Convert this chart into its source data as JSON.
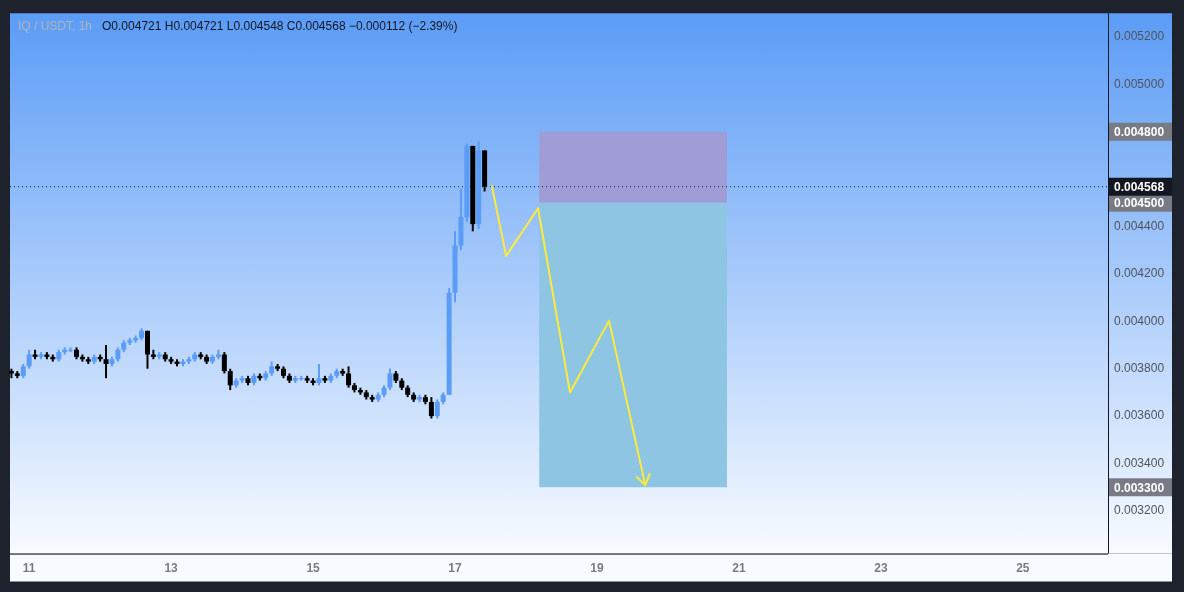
{
  "chart_data": {
    "type": "candlestick",
    "title": "IQ / USDT, 1h",
    "subtitle": "O0.004721 H0.004721 L0.004548 C0.004568 −0.000112 (−2.39%)",
    "xlim": [
      10.73,
      26.2
    ],
    "xticks": [
      11,
      13,
      15,
      17,
      19,
      21,
      23,
      25
    ],
    "ylim": [
      0.00302,
      0.0053
    ],
    "yticks": [
      {
        "value": 0.0032,
        "label": "0.003200"
      },
      {
        "value": 0.0034,
        "label": "0.003400"
      },
      {
        "value": 0.0036,
        "label": "0.003600"
      },
      {
        "value": 0.0038,
        "label": "0.003800"
      },
      {
        "value": 0.004,
        "label": "0.004000"
      },
      {
        "value": 0.0042,
        "label": "0.004200"
      },
      {
        "value": 0.0044,
        "label": "0.004400"
      },
      {
        "value": 0.005,
        "label": "0.005000"
      },
      {
        "value": 0.0052,
        "label": "0.005200"
      }
    ],
    "legend": false,
    "grid": false,
    "ref_lines": [
      {
        "axis": "y",
        "value": 0.004568,
        "label": "0.004568",
        "color": "#131722",
        "line_style": "dotted"
      }
    ],
    "bands": [
      {
        "axis": "y",
        "from": 0.0045,
        "to": 0.0048,
        "color": "#a09dd6"
      },
      {
        "axis": "y",
        "from": 0.0033,
        "to": 0.0045,
        "color": "#8ec5e2"
      }
    ],
    "annotations": [
      "0.004800",
      "0.004500",
      "0.003300"
    ],
    "series": [
      {
        "type": "candlestick",
        "x": [
          10.75,
          10.833,
          10.917,
          11,
          11.083,
          11.167,
          11.25,
          11.333,
          11.417,
          11.5,
          11.583,
          11.667,
          11.75,
          11.833,
          11.917,
          12,
          12.083,
          12.167,
          12.25,
          12.333,
          12.417,
          12.5,
          12.583,
          12.667,
          12.75,
          12.833,
          12.917,
          13,
          13.083,
          13.167,
          13.25,
          13.333,
          13.417,
          13.5,
          13.583,
          13.667,
          13.75,
          13.833,
          13.917,
          14,
          14.083,
          14.167,
          14.25,
          14.333,
          14.417,
          14.5,
          14.583,
          14.667,
          14.75,
          14.833,
          14.917,
          15,
          15.083,
          15.167,
          15.25,
          15.333,
          15.417,
          15.5,
          15.583,
          15.667,
          15.75,
          15.833,
          15.917,
          16,
          16.083,
          16.167,
          16.25,
          16.333,
          16.417,
          16.5,
          16.583,
          16.667,
          16.75,
          16.833,
          16.917,
          17,
          17.083,
          17.167,
          17.25,
          17.333,
          17.417
        ],
        "ohlc": [
          [
            0.00379,
            0.0038,
            0.00376,
            0.00378
          ],
          [
            0.00378,
            0.00379,
            0.00376,
            0.00377
          ],
          [
            0.00377,
            0.00382,
            0.00376,
            0.00381
          ],
          [
            0.00381,
            0.00388,
            0.0038,
            0.00386
          ],
          [
            0.00386,
            0.00388,
            0.00384,
            0.00385
          ],
          [
            0.00385,
            0.00387,
            0.00384,
            0.00386
          ],
          [
            0.00386,
            0.00387,
            0.00384,
            0.00385
          ],
          [
            0.00385,
            0.00386,
            0.00383,
            0.00384
          ],
          [
            0.00384,
            0.00388,
            0.00383,
            0.00387
          ],
          [
            0.00387,
            0.00389,
            0.00386,
            0.00388
          ],
          [
            0.00388,
            0.00389,
            0.00387,
            0.00388
          ],
          [
            0.00388,
            0.00389,
            0.00384,
            0.00385
          ],
          [
            0.00385,
            0.00386,
            0.00383,
            0.00384
          ],
          [
            0.00384,
            0.00385,
            0.00382,
            0.00383
          ],
          [
            0.00383,
            0.00386,
            0.00382,
            0.00385
          ],
          [
            0.00385,
            0.00386,
            0.00383,
            0.00384
          ],
          [
            0.00384,
            0.0039,
            0.00376,
            0.00382
          ],
          [
            0.00382,
            0.00385,
            0.00381,
            0.00384
          ],
          [
            0.00384,
            0.00389,
            0.00383,
            0.00388
          ],
          [
            0.00388,
            0.00392,
            0.00387,
            0.00391
          ],
          [
            0.00391,
            0.00393,
            0.0039,
            0.00392
          ],
          [
            0.00392,
            0.00394,
            0.00391,
            0.00393
          ],
          [
            0.00393,
            0.00397,
            0.00392,
            0.00396
          ],
          [
            0.00396,
            0.00396,
            0.0038,
            0.00386
          ],
          [
            0.00386,
            0.00388,
            0.00384,
            0.00385
          ],
          [
            0.00385,
            0.00387,
            0.00384,
            0.00386
          ],
          [
            0.00386,
            0.00387,
            0.00383,
            0.00384
          ],
          [
            0.00384,
            0.00385,
            0.00382,
            0.00383
          ],
          [
            0.00383,
            0.00384,
            0.00381,
            0.00382
          ],
          [
            0.00382,
            0.00384,
            0.00381,
            0.00383
          ],
          [
            0.00383,
            0.00385,
            0.00382,
            0.00384
          ],
          [
            0.00384,
            0.00387,
            0.00383,
            0.00386
          ],
          [
            0.00386,
            0.00387,
            0.00384,
            0.00385
          ],
          [
            0.00385,
            0.00386,
            0.00382,
            0.00383
          ],
          [
            0.00383,
            0.00386,
            0.00382,
            0.00385
          ],
          [
            0.00385,
            0.00388,
            0.00384,
            0.00386
          ],
          [
            0.00386,
            0.00387,
            0.00378,
            0.00379
          ],
          [
            0.00379,
            0.0038,
            0.00371,
            0.00373
          ],
          [
            0.00373,
            0.00376,
            0.00372,
            0.00375
          ],
          [
            0.00375,
            0.00377,
            0.00374,
            0.00376
          ],
          [
            0.00376,
            0.00377,
            0.00373,
            0.00374
          ],
          [
            0.00374,
            0.00378,
            0.00373,
            0.00377
          ],
          [
            0.00377,
            0.00378,
            0.00375,
            0.00376
          ],
          [
            0.00376,
            0.00379,
            0.00375,
            0.00378
          ],
          [
            0.00378,
            0.00383,
            0.00377,
            0.00381
          ],
          [
            0.00381,
            0.00382,
            0.00379,
            0.0038
          ],
          [
            0.0038,
            0.00381,
            0.00376,
            0.00377
          ],
          [
            0.00377,
            0.00378,
            0.00374,
            0.00375
          ],
          [
            0.00375,
            0.00377,
            0.00374,
            0.00376
          ],
          [
            0.00376,
            0.00377,
            0.00375,
            0.00376
          ],
          [
            0.00376,
            0.00377,
            0.00374,
            0.00375
          ],
          [
            0.00375,
            0.00376,
            0.00373,
            0.00374
          ],
          [
            0.00374,
            0.00382,
            0.00373,
            0.00376
          ],
          [
            0.00376,
            0.00377,
            0.00374,
            0.00375
          ],
          [
            0.00375,
            0.00378,
            0.00374,
            0.00377
          ],
          [
            0.00377,
            0.0038,
            0.00376,
            0.00379
          ],
          [
            0.00379,
            0.0038,
            0.00377,
            0.00378
          ],
          [
            0.00378,
            0.00381,
            0.00372,
            0.00373
          ],
          [
            0.00373,
            0.00374,
            0.0037,
            0.00371
          ],
          [
            0.00371,
            0.00372,
            0.00369,
            0.0037
          ],
          [
            0.0037,
            0.00371,
            0.00367,
            0.00368
          ],
          [
            0.00368,
            0.00369,
            0.00366,
            0.00367
          ],
          [
            0.00367,
            0.0037,
            0.00366,
            0.00369
          ],
          [
            0.00369,
            0.00373,
            0.00368,
            0.00372
          ],
          [
            0.00372,
            0.0038,
            0.00371,
            0.00378
          ],
          [
            0.00378,
            0.00379,
            0.00374,
            0.00375
          ],
          [
            0.00375,
            0.00376,
            0.00371,
            0.00372
          ],
          [
            0.00372,
            0.00373,
            0.00368,
            0.00369
          ],
          [
            0.00369,
            0.0037,
            0.00366,
            0.00367
          ],
          [
            0.00367,
            0.00369,
            0.00366,
            0.00368
          ],
          [
            0.00368,
            0.00369,
            0.00365,
            0.00366
          ],
          [
            0.00366,
            0.00368,
            0.00359,
            0.0036
          ],
          [
            0.0036,
            0.00367,
            0.00359,
            0.00366
          ],
          [
            0.00366,
            0.0037,
            0.00365,
            0.00369
          ],
          [
            0.00369,
            0.00414,
            0.00369,
            0.00412
          ],
          [
            0.00412,
            0.00438,
            0.00408,
            0.00432
          ],
          [
            0.00432,
            0.00456,
            0.0043,
            0.00444
          ],
          [
            0.00444,
            0.00475,
            0.00442,
            0.00474
          ],
          [
            0.00474,
            0.00474,
            0.00438,
            0.00441
          ],
          [
            0.00441,
            0.00476,
            0.00439,
            0.00472
          ],
          [
            0.004721,
            0.004721,
            0.004548,
            0.004568
          ]
        ],
        "colors": [
          "#000000",
          "#000000",
          "#5b9cf6",
          "#5b9cf6",
          "#000000",
          "#5b9cf6",
          "#000000",
          "#000000",
          "#5b9cf6",
          "#5b9cf6",
          "#5b9cf6",
          "#000000",
          "#000000",
          "#000000",
          "#5b9cf6",
          "#000000",
          "#000000",
          "#5b9cf6",
          "#5b9cf6",
          "#5b9cf6",
          "#5b9cf6",
          "#5b9cf6",
          "#5b9cf6",
          "#000000",
          "#000000",
          "#5b9cf6",
          "#000000",
          "#000000",
          "#000000",
          "#5b9cf6",
          "#5b9cf6",
          "#5b9cf6",
          "#000000",
          "#000000",
          "#5b9cf6",
          "#5b9cf6",
          "#000000",
          "#000000",
          "#5b9cf6",
          "#5b9cf6",
          "#000000",
          "#5b9cf6",
          "#000000",
          "#5b9cf6",
          "#5b9cf6",
          "#000000",
          "#000000",
          "#000000",
          "#5b9cf6",
          "#5b9cf6",
          "#000000",
          "#000000",
          "#5b9cf6",
          "#000000",
          "#5b9cf6",
          "#5b9cf6",
          "#000000",
          "#000000",
          "#000000",
          "#000000",
          "#000000",
          "#000000",
          "#5b9cf6",
          "#5b9cf6",
          "#5b9cf6",
          "#000000",
          "#000000",
          "#000000",
          "#000000",
          "#5b9cf6",
          "#000000",
          "#000000",
          "#5b9cf6",
          "#5b9cf6",
          "#5b9cf6",
          "#5b9cf6",
          "#5b9cf6",
          "#5b9cf6",
          "#000000",
          "#5b9cf6",
          "#000000"
        ]
      },
      {
        "type": "line",
        "color": "#ffeb3b",
        "x": [
          17.52,
          17.72,
          18.17,
          18.62,
          19.17,
          19.68
        ],
        "values": [
          0.00457,
          0.004276,
          0.004477,
          0.0037,
          0.004003,
          0.003309
        ]
      }
    ]
  }
}
